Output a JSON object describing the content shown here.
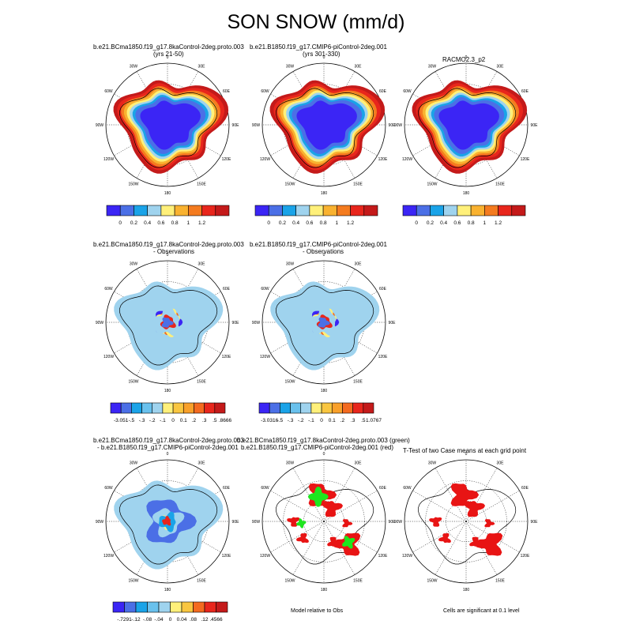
{
  "figure": {
    "title": "SON SNOW (mm/d)",
    "row3_center_caption": "Model relative to Obs",
    "row3_right_caption": "Cells are significant at 0.1 level"
  },
  "panel_titles": [
    [
      "b.e21.BCma1850.f19_g17.8kaControl-2deg.proto.003",
      "(yrs 21-50)"
    ],
    [
      "b.e21.B1850.f19_g17.CMIP6-piControl-2deg.001",
      "(yrs 301-330)"
    ],
    [
      "RACMO2.3_p2"
    ],
    [
      "b.e21.BCma1850.f19_g17.8kaControl-2deg.proto.003",
      "- Observations"
    ],
    [
      "b.e21.B1850.f19_g17.CMIP6-piControl-2deg.001",
      "- Observations"
    ],
    [
      "b.e21.BCma1850.f19_g17.8kaControl-2deg.proto.003",
      "- b.e21.B1850.f19_g17.CMIP6-piControl-2deg.001"
    ],
    [
      "b.e21.BCma1850.f19_g17.8kaControl-2deg.proto.003 (green)",
      "b.e21.B1850.f19_g17.CMIP6-piControl-2deg.001 (red)"
    ],
    [
      "T-Test of two Case means at each grid point"
    ]
  ],
  "map_labels": {
    "lon_labels": [
      "180",
      "150W",
      "120W",
      "90W",
      "60W",
      "30W",
      "0",
      "30E",
      "60E",
      "90E",
      "120E",
      "150E"
    ]
  },
  "colors": {
    "snow_scale": [
      "#3b25f5",
      "#4b6fe6",
      "#1aa3e8",
      "#9fd3ee",
      "#fff07a",
      "#f9b230",
      "#f47b1f",
      "#e8261c",
      "#c41a1a"
    ],
    "diff_scale": [
      "#3b25f5",
      "#4b6fe6",
      "#1aa3e8",
      "#69c1ed",
      "#9fd3ee",
      "#fff07a",
      "#f9c640",
      "#f9a02a",
      "#f46a1f",
      "#e8261c",
      "#c41a1a"
    ],
    "case1_sig": "#1ee61e",
    "case2_sig": "#e81414"
  },
  "chart_data": [
    {
      "type": "heatmap",
      "title": "b.e21.BCma1850.f19_g17.8kaControl-2deg.proto.003",
      "subtitle": "(yrs 21-50)",
      "colorbar_labels": [
        "0",
        "0.2",
        "0.4",
        "0.6",
        "0.8",
        "1",
        "1.2"
      ]
    },
    {
      "type": "heatmap",
      "title": "b.e21.B1850.f19_g17.CMIP6-piControl-2deg.001",
      "subtitle": "(yrs 301-330)",
      "colorbar_labels": [
        "0",
        "0.2",
        "0.4",
        "0.6",
        "0.8",
        "1",
        "1.2"
      ]
    },
    {
      "type": "heatmap",
      "title": "RACMO2.3_p2",
      "colorbar_labels": [
        "0",
        "0.2",
        "0.4",
        "0.6",
        "0.8",
        "1",
        "1.2"
      ]
    },
    {
      "type": "heatmap",
      "title": "b.e21.BCma1850.f19_g17.8kaControl-2deg.proto.003",
      "subtitle": "- Observations",
      "colorbar_labels": [
        "-3.051",
        "-.5",
        "-.3",
        "-.2",
        "-.1",
        "0",
        "0.1",
        ".2",
        ".3",
        ".5",
        ".8666"
      ]
    },
    {
      "type": "heatmap",
      "title": "b.e21.B1850.f19_g17.CMIP6-piControl-2deg.001",
      "subtitle": "- Observations",
      "colorbar_labels": [
        "-3.0316",
        "-.5",
        "-.3",
        "-.2",
        "-.1",
        "0",
        "0.1",
        ".2",
        ".3",
        ".5",
        "1.0767"
      ]
    },
    {
      "type": "heatmap",
      "title": "b.e21.BCma1850.f19_g17.8kaControl-2deg.proto.003",
      "subtitle": "- b.e21.B1850.f19_g17.CMIP6-piControl-2deg.001",
      "colorbar_labels": [
        "-.7291",
        "-.12",
        "-.08",
        "-.04",
        "0",
        "0.04",
        ".08",
        ".12",
        ".4566"
      ]
    },
    {
      "type": "heatmap",
      "title": "b.e21.BCma1850.f19_g17.8kaControl-2deg.proto.003 (green)",
      "subtitle": "b.e21.B1850.f19_g17.CMIP6-piControl-2deg.001 (red)",
      "caption": "Model relative to Obs"
    },
    {
      "type": "heatmap",
      "title": "T-Test of two Case means at each grid point",
      "caption": "Cells are significant at 0.1 level"
    }
  ]
}
